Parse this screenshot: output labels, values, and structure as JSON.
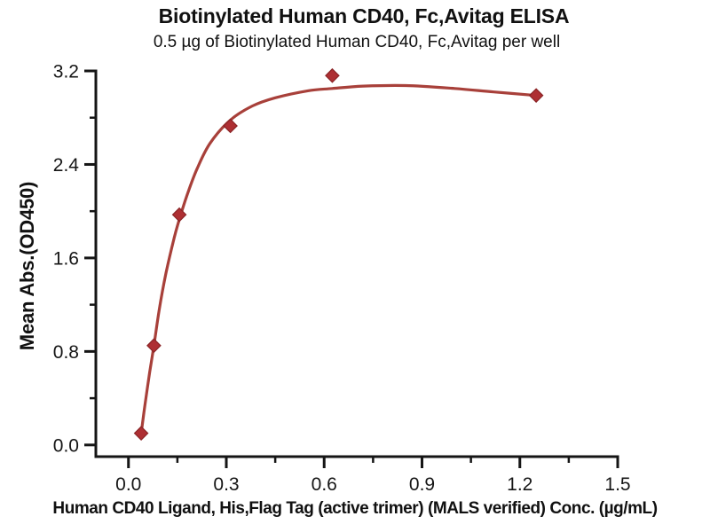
{
  "chart_data": {
    "type": "scatter",
    "title": "Biotinylated Human CD40, Fc,Avitag ELISA",
    "subtitle": "0.5 µg of Biotinylated Human CD40, Fc,Avitag per well",
    "xlabel": "Human CD40 Ligand, His,Flag Tag (active trimer) (MALS verified) Conc. (µg/mL)",
    "ylabel": "Mean Abs.(OD450)",
    "xlim": [
      -0.1,
      1.5
    ],
    "ylim": [
      -0.1,
      3.2
    ],
    "grid": false,
    "legend": null,
    "x_major_ticks": [
      0.0,
      0.3,
      0.6,
      0.9,
      1.2,
      1.5
    ],
    "x_major_tick_labels": [
      "0.0",
      "0.3",
      "0.6",
      "0.9",
      "1.2",
      "1.5"
    ],
    "x_minor_ticks": [
      0.15,
      0.45,
      0.75,
      1.05,
      1.35
    ],
    "y_major_ticks": [
      0.0,
      0.8,
      1.6,
      2.4,
      3.2
    ],
    "y_major_tick_labels": [
      "0.0",
      "0.8",
      "1.6",
      "2.4",
      "3.2"
    ],
    "y_minor_ticks": [
      0.4,
      1.2,
      2.0,
      2.8
    ],
    "series": [
      {
        "name": "Biotinylated Human CD40, Fc,Avitag",
        "marker": "diamond",
        "points": [
          [
            0.039,
            0.1
          ],
          [
            0.078,
            0.85
          ],
          [
            0.156,
            1.97
          ],
          [
            0.3125,
            2.73
          ],
          [
            0.625,
            3.16
          ],
          [
            1.25,
            2.99
          ]
        ]
      }
    ],
    "fit_curve": [
      [
        0.039,
        0.1
      ],
      [
        0.05,
        0.33
      ],
      [
        0.065,
        0.62
      ],
      [
        0.078,
        0.85
      ],
      [
        0.095,
        1.17
      ],
      [
        0.115,
        1.47
      ],
      [
        0.14,
        1.77
      ],
      [
        0.156,
        1.93
      ],
      [
        0.18,
        2.14
      ],
      [
        0.21,
        2.36
      ],
      [
        0.25,
        2.58
      ],
      [
        0.3125,
        2.78
      ],
      [
        0.38,
        2.9
      ],
      [
        0.45,
        2.97
      ],
      [
        0.55,
        3.03
      ],
      [
        0.625,
        3.05
      ],
      [
        0.72,
        3.07
      ],
      [
        0.85,
        3.075
      ],
      [
        1.0,
        3.05
      ],
      [
        1.12,
        3.02
      ],
      [
        1.25,
        2.99
      ]
    ],
    "colors": {
      "curve": "#A8403A",
      "marker": "#AE2F33",
      "marker_edge": "#8A2426",
      "axis": "#151515",
      "text": "#151515",
      "background": "#FFFFFF"
    }
  }
}
